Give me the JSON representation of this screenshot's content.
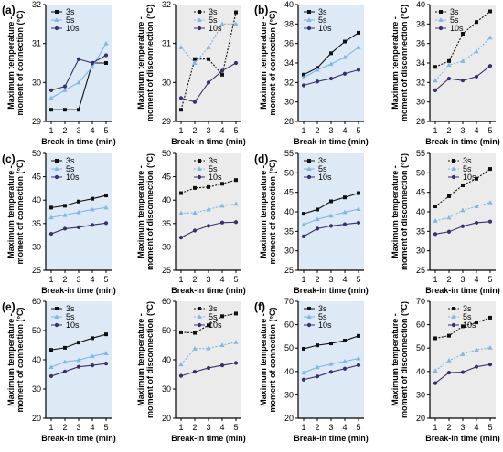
{
  "colors": {
    "left_bg": "#dde9f5",
    "right_bg": "#ebebeb",
    "s3": "#111111",
    "s5": "#7fb8e6",
    "s10": "#3a2f6e"
  },
  "chart_data": [
    {
      "type": "line",
      "panel": "(a)",
      "side": "left",
      "xlabel": "Break-in time (min)",
      "ylabel": [
        "Maximum temperature -",
        "moment of connection (°C)"
      ],
      "x": [
        1,
        2,
        3,
        4,
        5
      ],
      "xticks": [
        "1",
        "2",
        "3",
        "4",
        "5"
      ],
      "ylim": [
        29,
        32
      ],
      "yticks": [
        "29",
        "30",
        "31",
        "32"
      ],
      "yticklabels": [
        "29",
        "30",
        "31",
        "32"
      ],
      "legend": "top-left",
      "series": [
        {
          "name": "3s",
          "values": [
            29.3,
            29.3,
            29.3,
            30.5,
            30.5
          ]
        },
        {
          "name": "5s",
          "values": [
            29.6,
            29.8,
            30.0,
            30.4,
            31.0
          ]
        },
        {
          "name": "10s",
          "values": [
            29.8,
            29.9,
            30.6,
            30.5,
            30.7
          ]
        }
      ]
    },
    {
      "type": "line",
      "panel": "",
      "side": "right",
      "xlabel": "Break-in time (min)",
      "ylabel": [
        "Maximum temperature -",
        "moment of disconnection (°C)"
      ],
      "x": [
        1,
        2,
        3,
        4,
        5
      ],
      "xticks": [
        "1",
        "2",
        "3",
        "4",
        "5"
      ],
      "ylim": [
        29,
        32
      ],
      "yticks": [
        "29",
        "30",
        "31",
        "32"
      ],
      "yticklabels": [
        "29",
        "30",
        "31",
        "32"
      ],
      "legend": "top-right",
      "series": [
        {
          "name": "3s",
          "values": [
            29.3,
            30.6,
            30.6,
            30.2,
            31.8
          ]
        },
        {
          "name": "5s",
          "values": [
            30.9,
            30.5,
            30.9,
            31.5,
            31.5
          ]
        },
        {
          "name": "10s",
          "values": [
            29.6,
            29.5,
            30.0,
            30.3,
            30.5
          ]
        }
      ]
    },
    {
      "type": "line",
      "panel": "(b)",
      "side": "left",
      "xlabel": "Break-in time (min)",
      "ylabel": [
        "Maximum temperature -",
        "moment of connection (°C)"
      ],
      "x": [
        1,
        2,
        3,
        4,
        5
      ],
      "xticks": [
        "1",
        "2",
        "3",
        "4",
        "5"
      ],
      "ylim": [
        28,
        40
      ],
      "yticks": [
        "28",
        "30",
        "32",
        "34",
        "36",
        "38",
        "40"
      ],
      "yticklabels": [
        "28",
        "30",
        "32",
        "34",
        "36",
        "38",
        "40"
      ],
      "legend": "top-left",
      "series": [
        {
          "name": "3s",
          "values": [
            32.8,
            33.5,
            35.0,
            36.2,
            37.1
          ]
        },
        {
          "name": "5s",
          "values": [
            32.5,
            33.3,
            33.9,
            34.6,
            35.6
          ]
        },
        {
          "name": "10s",
          "values": [
            31.7,
            32.1,
            32.4,
            32.9,
            33.3
          ]
        }
      ]
    },
    {
      "type": "line",
      "panel": "",
      "side": "right",
      "xlabel": "Break-in time (min)",
      "ylabel": [
        "Maximum temperature -",
        "moment of disconnection (°C)"
      ],
      "x": [
        1,
        2,
        3,
        4,
        5
      ],
      "xticks": [
        "1",
        "2",
        "3",
        "4",
        "5"
      ],
      "ylim": [
        28,
        40
      ],
      "yticks": [
        "28",
        "30",
        "32",
        "34",
        "36",
        "38",
        "40"
      ],
      "yticklabels": [
        "28",
        "30",
        "32",
        "34",
        "36",
        "38",
        "40"
      ],
      "legend": "top-left",
      "series": [
        {
          "name": "3s",
          "values": [
            33.6,
            34.2,
            37.0,
            38.2,
            39.3
          ]
        },
        {
          "name": "5s",
          "values": [
            32.2,
            33.8,
            34.2,
            35.2,
            36.6
          ]
        },
        {
          "name": "10s",
          "values": [
            31.2,
            32.4,
            32.2,
            32.6,
            33.7
          ]
        }
      ]
    },
    {
      "type": "line",
      "panel": "(c)",
      "side": "left",
      "xlabel": "Break-in time (min)",
      "ylabel": [
        "Maximum temperature -",
        "moment of connection (°C)"
      ],
      "x": [
        1,
        2,
        3,
        4,
        5
      ],
      "xticks": [
        "1",
        "2",
        "3",
        "4",
        "5"
      ],
      "ylim": [
        25,
        50
      ],
      "yticks": [
        "25",
        "30",
        "35",
        "40",
        "45",
        "50"
      ],
      "yticklabels": [
        "25",
        "30",
        "35",
        "40",
        "45",
        "50"
      ],
      "legend": "top-left",
      "series": [
        {
          "name": "3s",
          "values": [
            38.4,
            38.8,
            39.7,
            40.3,
            41.0
          ]
        },
        {
          "name": "5s",
          "values": [
            36.3,
            36.8,
            37.4,
            38.0,
            38.4
          ]
        },
        {
          "name": "10s",
          "values": [
            32.8,
            33.9,
            34.2,
            34.7,
            35.1
          ]
        }
      ]
    },
    {
      "type": "line",
      "panel": "",
      "side": "right",
      "xlabel": "Break-in time (min)",
      "ylabel": [
        "Maximum temperature -",
        "moment of disconnection (°C)"
      ],
      "x": [
        1,
        2,
        3,
        4,
        5
      ],
      "xticks": [
        "1",
        "2",
        "3",
        "4",
        "5"
      ],
      "ylim": [
        25,
        50
      ],
      "yticks": [
        "25",
        "30",
        "35",
        "40",
        "45",
        "50"
      ],
      "yticklabels": [
        "25",
        "30",
        "35",
        "40",
        "45",
        "50"
      ],
      "legend": "top-right",
      "series": [
        {
          "name": "3s",
          "values": [
            41.5,
            42.6,
            42.8,
            43.5,
            44.3
          ]
        },
        {
          "name": "5s",
          "values": [
            37.2,
            37.3,
            38.0,
            38.8,
            39.2
          ]
        },
        {
          "name": "10s",
          "values": [
            32.0,
            33.5,
            34.5,
            35.2,
            35.3
          ]
        }
      ]
    },
    {
      "type": "line",
      "panel": "(d)",
      "side": "left",
      "xlabel": "Break-in time (min)",
      "ylabel": [
        "Maximum temperature -",
        "moment of connection (°C)"
      ],
      "x": [
        1,
        2,
        3,
        4,
        5
      ],
      "xticks": [
        "1",
        "2",
        "3",
        "4",
        "5"
      ],
      "ylim": [
        25,
        55
      ],
      "yticks": [
        "25",
        "30",
        "35",
        "40",
        "45",
        "50",
        "55"
      ],
      "yticklabels": [
        "25",
        "30",
        "35",
        "40",
        "45",
        "50",
        "55"
      ],
      "legend": "top-left",
      "series": [
        {
          "name": "3s",
          "values": [
            39.5,
            40.6,
            42.7,
            43.7,
            44.8
          ]
        },
        {
          "name": "5s",
          "values": [
            36.7,
            38.1,
            39.0,
            39.9,
            40.7
          ]
        },
        {
          "name": "10s",
          "values": [
            33.7,
            35.7,
            36.4,
            36.8,
            37.2
          ]
        }
      ]
    },
    {
      "type": "line",
      "panel": "",
      "side": "right",
      "xlabel": "Break-in time (min)",
      "ylabel": [
        "Maximum temperature -",
        "moment of disconnection (°C)"
      ],
      "x": [
        1,
        2,
        3,
        4,
        5
      ],
      "xticks": [
        "1",
        "2",
        "3",
        "4",
        "5"
      ],
      "ylim": [
        25,
        55
      ],
      "yticks": [
        "25",
        "30",
        "35",
        "40",
        "45",
        "50",
        "55"
      ],
      "yticklabels": [
        "25",
        "30",
        "35",
        "40",
        "45",
        "50",
        "55"
      ],
      "legend": "top-right",
      "series": [
        {
          "name": "3s",
          "values": [
            41.4,
            44.0,
            46.8,
            48.5,
            51.0
          ]
        },
        {
          "name": "5s",
          "values": [
            37.7,
            38.5,
            40.4,
            41.4,
            42.4
          ]
        },
        {
          "name": "10s",
          "values": [
            34.3,
            34.9,
            36.3,
            37.2,
            37.5
          ]
        }
      ]
    },
    {
      "type": "line",
      "panel": "(e)",
      "side": "left",
      "xlabel": "Break-in time (min)",
      "ylabel": [
        "Maximum temperature -",
        "moment of connection (°C)"
      ],
      "x": [
        1,
        2,
        3,
        4,
        5
      ],
      "xticks": [
        "1",
        "2",
        "3",
        "4",
        "5"
      ],
      "ylim": [
        20,
        60
      ],
      "yticks": [
        "20",
        "30",
        "40",
        "50",
        "60"
      ],
      "yticklabels": [
        "20",
        "30",
        "40",
        "50",
        "60"
      ],
      "legend": "top-left",
      "series": [
        {
          "name": "3s",
          "values": [
            43.4,
            44.1,
            45.9,
            47.4,
            48.7
          ]
        },
        {
          "name": "5s",
          "values": [
            37.5,
            39.3,
            39.9,
            41.2,
            42.2
          ]
        },
        {
          "name": "10s",
          "values": [
            34.4,
            36.0,
            37.6,
            38.1,
            38.7
          ]
        }
      ]
    },
    {
      "type": "line",
      "panel": "",
      "side": "right",
      "xlabel": "Break-in time (min)",
      "ylabel": [
        "Maximum temperature -",
        "moment of disconnection (°C)"
      ],
      "x": [
        1,
        2,
        3,
        4,
        5
      ],
      "xticks": [
        "1",
        "2",
        "3",
        "4",
        "5"
      ],
      "ylim": [
        20,
        60
      ],
      "yticks": [
        "20",
        "30",
        "40",
        "50",
        "60"
      ],
      "yticklabels": [
        "20",
        "30",
        "40",
        "50",
        "60"
      ],
      "legend": "top-right",
      "series": [
        {
          "name": "3s",
          "values": [
            49.4,
            49.2,
            51.8,
            54.9,
            55.8
          ]
        },
        {
          "name": "5s",
          "values": [
            38.4,
            43.8,
            43.9,
            45.0,
            46.0
          ]
        },
        {
          "name": "10s",
          "values": [
            34.5,
            35.9,
            37.2,
            38.1,
            38.9
          ]
        }
      ]
    },
    {
      "type": "line",
      "panel": "(f)",
      "side": "left",
      "xlabel": "Break-in time (min)",
      "ylabel": [
        "Maximum temperature -",
        "moment of connection (°C)"
      ],
      "x": [
        1,
        2,
        3,
        4,
        5
      ],
      "xticks": [
        "1",
        "2",
        "3",
        "4",
        "5"
      ],
      "ylim": [
        20,
        70
      ],
      "yticks": [
        "20",
        "30",
        "40",
        "50",
        "60",
        "70"
      ],
      "yticklabels": [
        "20",
        "30",
        "40",
        "50",
        "60",
        "70"
      ],
      "legend": "top-left",
      "series": [
        {
          "name": "3s",
          "values": [
            49.7,
            51.2,
            52.0,
            53.2,
            55.2
          ]
        },
        {
          "name": "5s",
          "values": [
            39.5,
            41.8,
            43.2,
            44.3,
            45.6
          ]
        },
        {
          "name": "10s",
          "values": [
            36.5,
            37.9,
            39.8,
            41.2,
            42.7
          ]
        }
      ]
    },
    {
      "type": "line",
      "panel": "",
      "side": "right",
      "xlabel": "Break-in time (min)",
      "ylabel": [
        "Maximum temperature -",
        "moment of disconnection (°C)"
      ],
      "x": [
        1,
        2,
        3,
        4,
        5
      ],
      "xticks": [
        "1",
        "2",
        "3",
        "4",
        "5"
      ],
      "ylim": [
        20,
        70
      ],
      "yticks": [
        "20",
        "30",
        "40",
        "50",
        "60",
        "70"
      ],
      "yticklabels": [
        "20",
        "30",
        "40",
        "50",
        "60",
        "70"
      ],
      "legend": "top-right",
      "series": [
        {
          "name": "3s",
          "values": [
            54.2,
            55.3,
            59.3,
            61.0,
            63.0
          ]
        },
        {
          "name": "5s",
          "values": [
            40.3,
            44.7,
            47.4,
            49.3,
            50.2
          ]
        },
        {
          "name": "10s",
          "values": [
            35.0,
            39.5,
            39.7,
            42.0,
            43.0
          ]
        }
      ]
    }
  ]
}
